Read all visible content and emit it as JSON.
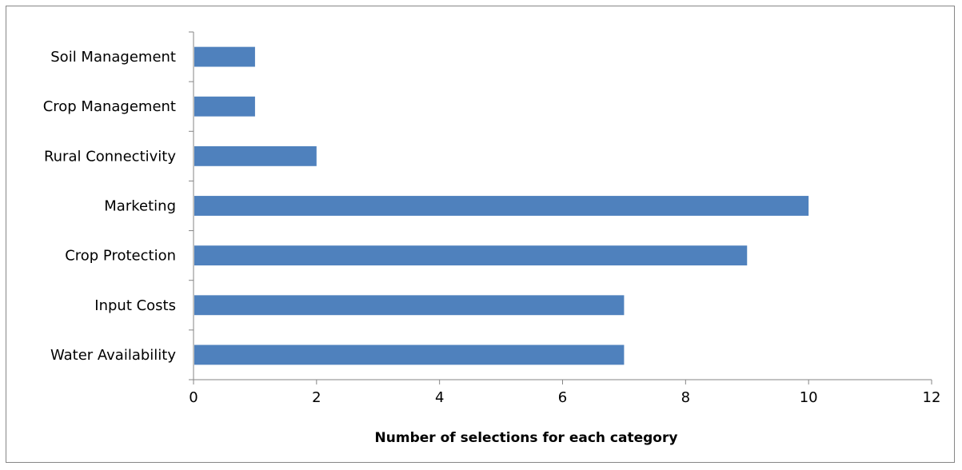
{
  "chart_data": {
    "type": "bar",
    "orientation": "horizontal",
    "categories": [
      "Soil Management",
      "Crop Management",
      "Rural Connectivity",
      "Marketing",
      "Crop Protection",
      "Input Costs",
      "Water Availability"
    ],
    "values": [
      1,
      1,
      2,
      10,
      9,
      7,
      7
    ],
    "title": "",
    "xlabel": "Number of selections for each category",
    "ylabel": "",
    "xlim": [
      0,
      12
    ],
    "xticks": [
      "0",
      "2",
      "4",
      "6",
      "8",
      "10",
      "12"
    ],
    "grid": false,
    "legend": "none",
    "bar_color": "#4F81BD",
    "axis_color": "#868686"
  }
}
